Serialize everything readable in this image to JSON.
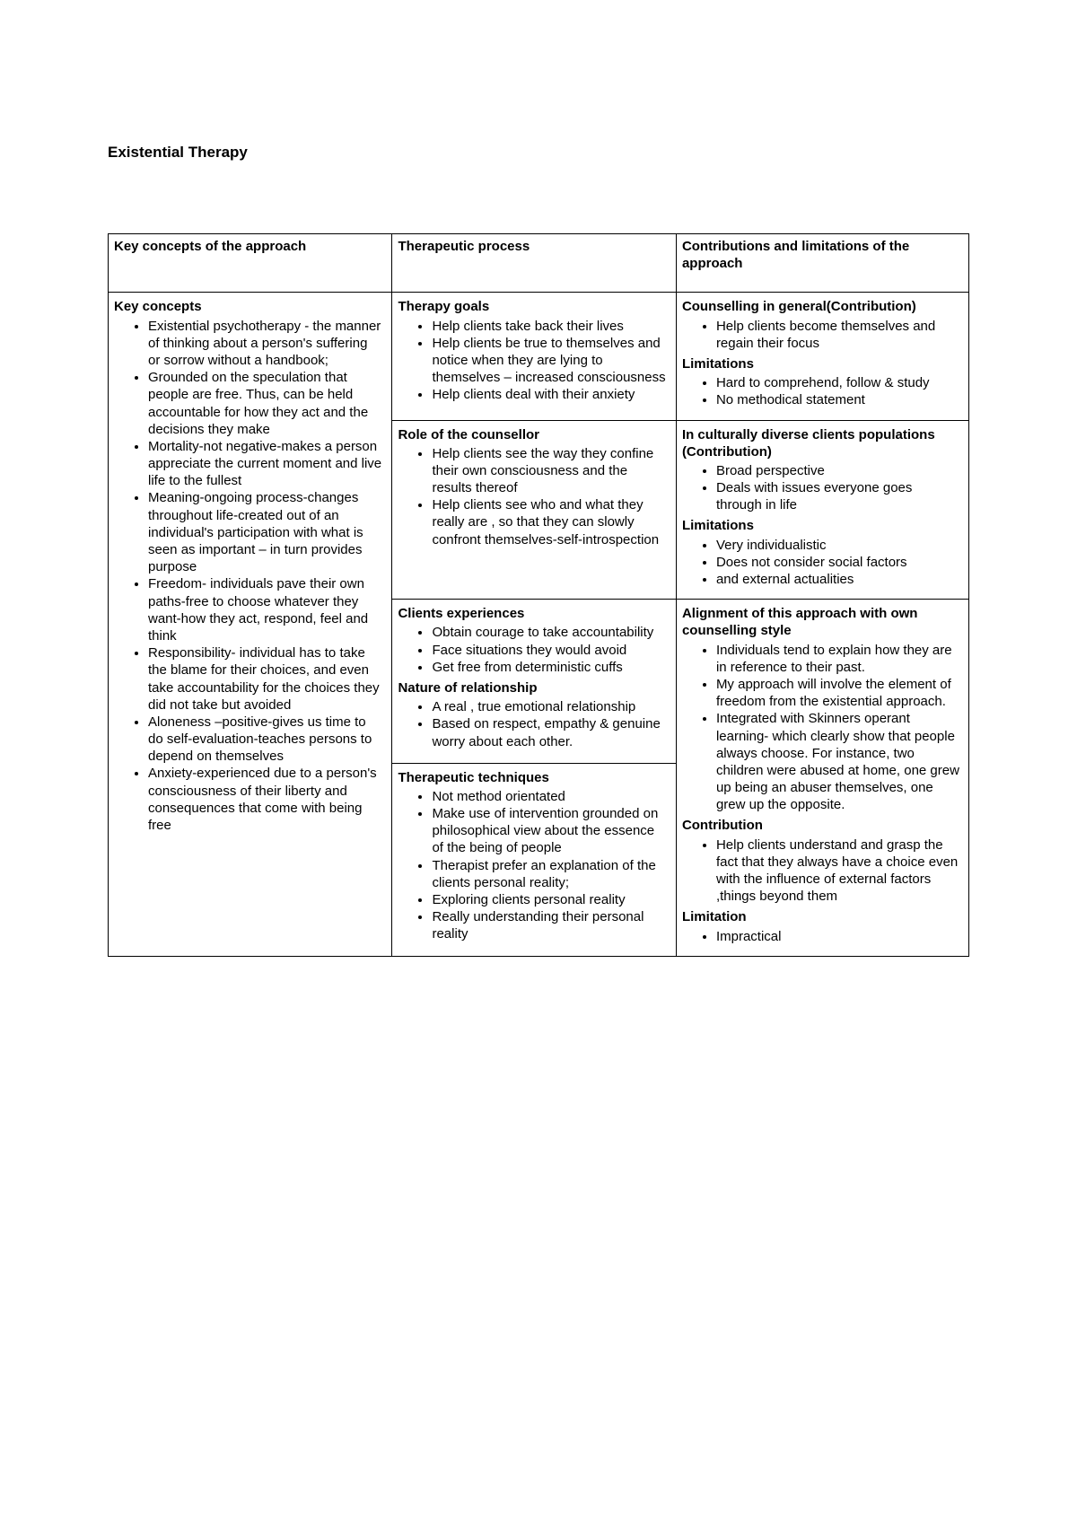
{
  "doc": {
    "title": "Existential Therapy"
  },
  "headers": {
    "c1": "Key concepts of the approach",
    "c2": "Therapeutic process",
    "c3": "Contributions and limitations of the approach"
  },
  "col1": {
    "h1": "Key concepts",
    "items": [
      "Existential psychotherapy - the manner of thinking about a person's suffering  or sorrow without a handbook;",
      "Grounded on the speculation that people are free. Thus, can be held accountable for how they act and the decisions they make",
      "Mortality-not negative-makes a person appreciate the current moment and live life to the fullest",
      "Meaning-ongoing process-changes throughout life-created out of an individual's participation with what is seen as important – in turn provides purpose",
      "Freedom- individuals pave their own paths-free to choose whatever they want-how they act, respond, feel and think",
      "Responsibility-  individual has to take the blame for their choices, and even take accountability for the choices they did not take but avoided",
      "Aloneness –positive-gives us time to do self-evaluation-teaches persons to depend on themselves",
      "Anxiety-experienced due to a person's consciousness of their liberty and consequences that come with being free"
    ]
  },
  "col2": {
    "r1": {
      "h": "Therapy goals",
      "items": [
        "Help clients take back their lives",
        "Help clients be true to themselves and notice when they are lying to themselves – increased consciousness",
        "Help clients deal with their anxiety"
      ]
    },
    "r2": {
      "h": "Role of the counsellor",
      "items": [
        "Help clients see the way they confine their own consciousness and the results thereof",
        "Help clients see who and what they really are , so that they can slowly confront themselves-self-introspection"
      ]
    },
    "r3a": {
      "h": "Clients experiences",
      "items": [
        "Obtain courage to take accountability",
        "Face situations they would avoid",
        "Get free from deterministic cuffs"
      ]
    },
    "r3b": {
      "h": "Nature of relationship",
      "items": [
        "A real , true emotional relationship",
        "Based on respect, empathy & genuine worry about each other."
      ]
    },
    "r4": {
      "h": "Therapeutic techniques",
      "items": [
        "Not method orientated",
        "Make use of intervention grounded on philosophical view about the essence of the being of people",
        "Therapist prefer an explanation of the clients personal reality;",
        "Exploring clients personal reality",
        "Really understanding their personal reality"
      ]
    }
  },
  "col3": {
    "r1a": {
      "h": "Counselling in general(Contribution)",
      "items": [
        "Help clients become themselves and regain their focus"
      ]
    },
    "r1b": {
      "h": "Limitations",
      "items": [
        "Hard to comprehend, follow & study",
        "No methodical statement"
      ]
    },
    "r2a": {
      "h": "In culturally diverse clients populations (Contribution)",
      "items": [
        "Broad perspective",
        "Deals with issues everyone goes through in life"
      ]
    },
    "r2b": {
      "h": "Limitations",
      "items": [
        "Very individualistic",
        "Does not consider social factors",
        "and external actualities"
      ]
    },
    "r3a": {
      "h": "Alignment of this approach with own counselling style",
      "items": [
        "Individuals tend to explain how they are in reference to their past.",
        "My approach will involve the element of freedom from the existential approach.",
        "Integrated with Skinners operant learning- which clearly show that people always choose. For instance, two children were abused at home, one grew up being an abuser themselves, one grew up the opposite."
      ]
    },
    "r3b": {
      "h": "Contribution",
      "items": [
        "Help clients understand and grasp the fact that they always have a choice even with the influence of external factors ,things beyond them"
      ]
    },
    "r3c": {
      "h": "Limitation",
      "items": [
        "Impractical"
      ]
    }
  }
}
